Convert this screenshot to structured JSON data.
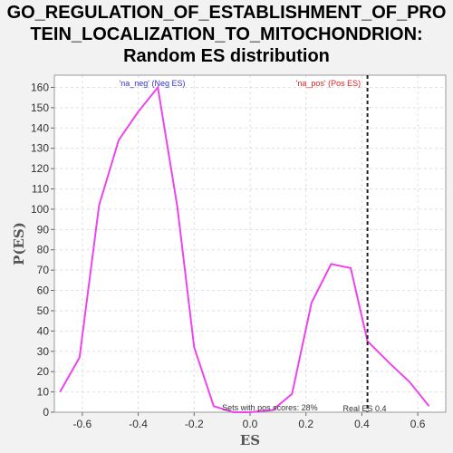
{
  "title_lines": [
    "GO_REGULATION_OF_ESTABLISHMENT_OF_PRO",
    "TEIN_LOCALIZATION_TO_MITOCHONDRION:",
    "Random ES distribution"
  ],
  "colors": {
    "line": "#ee44ee",
    "neg_label": "#3333cc",
    "pos_label": "#dd2222",
    "background": "#f2f2f2",
    "plot_bg": "#ffffff",
    "grid": "#e0e0e0"
  },
  "chart_data": {
    "type": "line",
    "xlabel": "ES",
    "ylabel": "P(ES)",
    "xlim": [
      -0.7,
      0.7
    ],
    "ylim": [
      0,
      166
    ],
    "x_ticks": [
      -0.6,
      -0.4,
      -0.2,
      0.0,
      0.2,
      0.4,
      0.6
    ],
    "x_tick_labels": [
      "-0.6",
      "-0.4",
      "-0.2",
      "0.0",
      "0.2",
      "0.4",
      "0.6"
    ],
    "y_ticks": [
      0,
      10,
      20,
      30,
      40,
      50,
      60,
      70,
      80,
      90,
      100,
      110,
      120,
      130,
      140,
      150,
      160
    ],
    "y_tick_labels": [
      "0",
      "10",
      "20",
      "30",
      "40",
      "50",
      "60",
      "70",
      "80",
      "90",
      "100",
      "110",
      "120",
      "130",
      "140",
      "150",
      "160"
    ],
    "grid": true,
    "series": [
      {
        "x": [
          -0.68,
          -0.61,
          -0.54,
          -0.47,
          -0.4,
          -0.33,
          -0.26,
          -0.2,
          -0.13,
          -0.06,
          0.0,
          0.08,
          0.15,
          0.22,
          0.29,
          0.36,
          0.42,
          0.5,
          0.57,
          0.64
        ],
        "y": [
          10,
          27,
          102,
          134,
          148,
          160,
          101,
          32,
          3,
          0,
          0,
          1,
          9,
          54,
          73,
          71,
          35,
          24,
          15,
          3
        ]
      }
    ],
    "vline": {
      "x": 0.42,
      "label": "Real ES 0.4"
    },
    "annotations": {
      "neg_label": "'na_neg' (Neg ES)",
      "pos_label": "'na_pos' (Pos ES)",
      "sets_text": "Sets with pos scores: 28%"
    }
  }
}
